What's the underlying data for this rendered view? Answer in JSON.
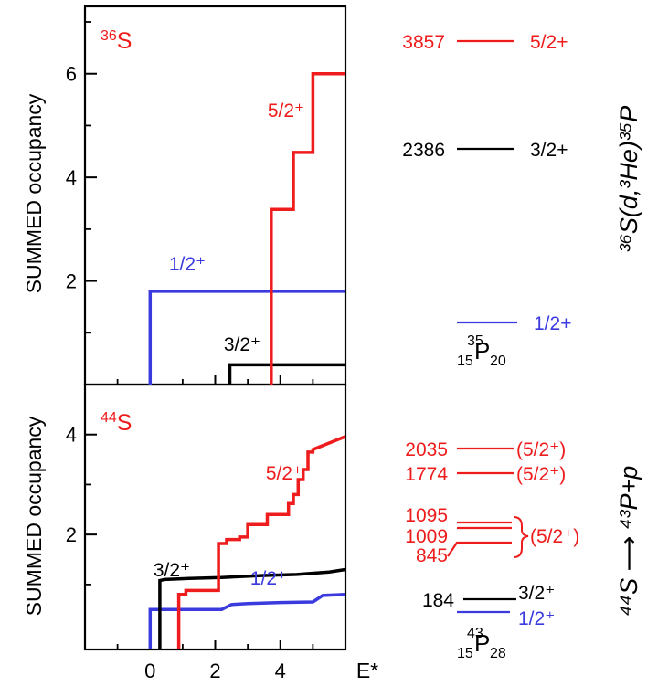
{
  "chart_data": [
    {
      "type": "line",
      "panel": "top",
      "title": "36S",
      "title_parts": {
        "mass": "36",
        "symbol": "S"
      },
      "ylabel": "SUMMED occupancy",
      "xlabel": "",
      "xlim": [
        -2,
        6
      ],
      "ylim": [
        0,
        7.3
      ],
      "y_ticks": [
        2,
        4,
        6
      ],
      "x_ticks": [
        0,
        2,
        4
      ],
      "series": [
        {
          "name": "1/2+",
          "label": "1/2⁺",
          "color": "#3a3adf",
          "step": true,
          "x": [
            0,
            0,
            6
          ],
          "y": [
            0,
            1.8,
            1.8
          ]
        },
        {
          "name": "3/2+",
          "label": "3/2⁺",
          "color": "#000000",
          "step": true,
          "x": [
            2.45,
            2.45,
            6
          ],
          "y": [
            0,
            0.38,
            0.38
          ]
        },
        {
          "name": "5/2+",
          "label": "5/2⁺",
          "color": "#ee1c1c",
          "step": true,
          "x": [
            3.72,
            3.72,
            4.4,
            4.4,
            5.0,
            5.0,
            5.7,
            5.7,
            6
          ],
          "y": [
            0,
            3.38,
            3.38,
            4.48,
            4.48,
            6.0,
            6.0,
            6.0,
            6.0
          ]
        }
      ]
    },
    {
      "type": "line",
      "panel": "bottom",
      "title": "44S",
      "title_parts": {
        "mass": "44",
        "symbol": "S"
      },
      "ylabel": "SUMMED occupancy",
      "xlabel": "E*",
      "xlim": [
        -2,
        6
      ],
      "ylim": [
        -0.3,
        5.0
      ],
      "y_ticks": [
        2,
        4
      ],
      "x_ticks": [
        0,
        2,
        4
      ],
      "x_tick_labels": [
        "0",
        "2",
        "4"
      ],
      "series": [
        {
          "name": "1/2+",
          "label": "1/2⁺",
          "color": "#3a3adf",
          "step": true,
          "x": [
            0,
            0,
            2.2,
            2.5,
            3.0,
            4.0,
            5.0,
            5.3,
            6.0
          ],
          "y": [
            -0.3,
            0.5,
            0.5,
            0.6,
            0.62,
            0.64,
            0.65,
            0.78,
            0.8
          ]
        },
        {
          "name": "3/2+",
          "label": "3/2⁺",
          "color": "#000000",
          "step": true,
          "x": [
            0.3,
            0.3,
            0.45,
            1.2,
            2.2,
            3.5,
            4.5,
            5.5,
            6.0
          ],
          "y": [
            -0.3,
            1.08,
            1.1,
            1.12,
            1.14,
            1.18,
            1.2,
            1.25,
            1.3
          ]
        },
        {
          "name": "5/2+",
          "label": "5/2⁺",
          "color": "#ee1c1c",
          "step": true,
          "x": [
            0.88,
            0.88,
            1.1,
            1.1,
            2.0,
            2.1,
            2.1,
            2.35,
            2.35,
            2.75,
            2.75,
            3.0,
            3.0,
            3.6,
            3.6,
            4.25,
            4.25,
            4.4,
            4.4,
            4.55,
            4.55,
            4.7,
            4.7,
            4.85,
            4.85,
            5.0,
            5.0,
            6.0
          ],
          "y": [
            -0.3,
            0.8,
            0.8,
            0.88,
            0.88,
            0.88,
            1.82,
            1.82,
            1.9,
            1.9,
            1.95,
            1.95,
            2.2,
            2.2,
            2.4,
            2.4,
            2.62,
            2.62,
            2.8,
            2.8,
            3.1,
            3.1,
            3.3,
            3.3,
            3.65,
            3.65,
            3.7,
            3.96
          ]
        }
      ]
    }
  ],
  "top_levels": {
    "reaction": "³⁶S(d,³He)³⁵P",
    "nucleus": {
      "mass": "35",
      "z": "15",
      "symbol": "P",
      "n": "20"
    },
    "levels": [
      {
        "energy": "3857",
        "spin": "5/2+",
        "color": "#ee1c1c"
      },
      {
        "energy": "2386",
        "spin": "3/2+",
        "color": "#000000"
      },
      {
        "energy": "",
        "spin": "1/2+",
        "color": "#3a3adf"
      }
    ]
  },
  "bottom_levels": {
    "reaction": "⁴⁴S ⟶ ⁴³P+p",
    "nucleus": {
      "mass": "43",
      "z": "15",
      "symbol": "P",
      "n": "28"
    },
    "levels": [
      {
        "energy": "2035",
        "spin": "(5/2⁺)",
        "color": "#ee1c1c"
      },
      {
        "energy": "1774",
        "spin": "(5/2⁺)",
        "color": "#ee1c1c"
      },
      {
        "energy": "1095",
        "spin": "",
        "color": "#ee1c1c"
      },
      {
        "energy": "1009",
        "spin": "(5/2⁺)",
        "color": "#ee1c1c"
      },
      {
        "energy": "845",
        "spin": "",
        "color": "#ee1c1c"
      },
      {
        "energy": "184",
        "spin": "3/2⁺",
        "color": "#000000"
      },
      {
        "energy": "",
        "spin": "1/2⁺",
        "color": "#3a3adf"
      }
    ]
  }
}
